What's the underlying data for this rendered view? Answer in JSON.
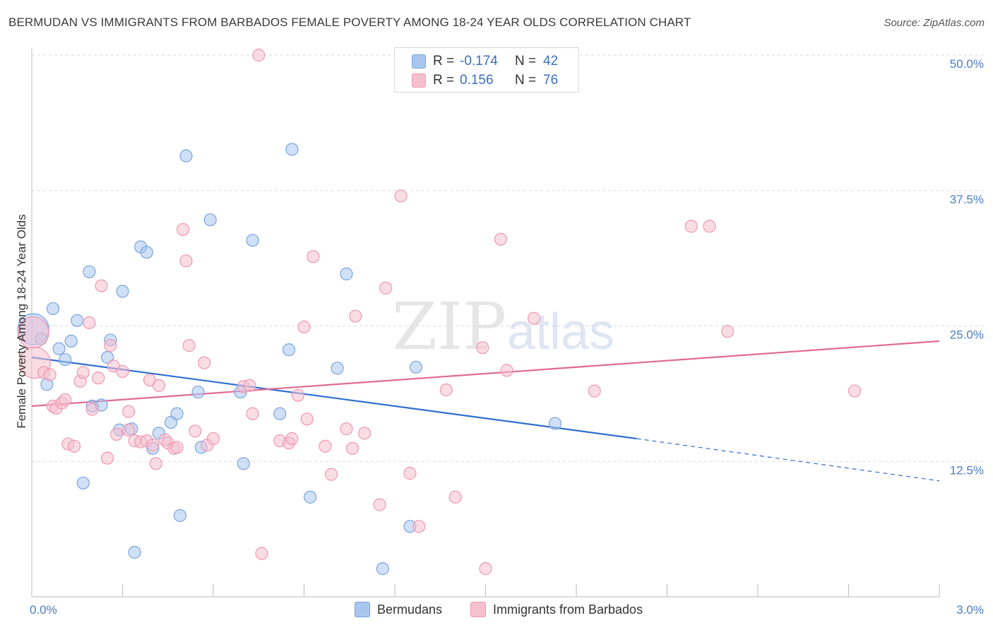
{
  "title": "BERMUDAN VS IMMIGRANTS FROM BARBADOS FEMALE POVERTY AMONG 18-24 YEAR OLDS CORRELATION CHART",
  "source": "Source: ZipAtlas.com",
  "watermark": {
    "zip": "ZIP",
    "atlas": "atlas"
  },
  "legend": {
    "rows": [
      {
        "r_label": "R =",
        "r_value": "-0.174",
        "n_label": "N =",
        "n_value": "42",
        "color": "#a9c6ef",
        "border": "#7aa4de"
      },
      {
        "r_label": "R =",
        "r_value": "0.156",
        "n_label": "N =",
        "n_value": "76",
        "color": "#f6bfd0",
        "border": "#ee98b3"
      }
    ]
  },
  "bottom_legend": [
    {
      "label": "Bermudans",
      "color": "#a9c6ef",
      "border": "#7aa4de"
    },
    {
      "label": "Immigrants from Barbados",
      "color": "#f6bfd0",
      "border": "#ee98b3"
    }
  ],
  "chart_data": {
    "type": "scatter",
    "title": "BERMUDAN VS IMMIGRANTS FROM BARBADOS FEMALE POVERTY AMONG 18-24 YEAR OLDS CORRELATION CHART",
    "ylabel": "Female Poverty Among 18-24 Year Olds",
    "xlabel": "",
    "xlim": [
      0,
      3.0
    ],
    "ylim": [
      0,
      50
    ],
    "x_tick_labels": [
      "0.0%",
      "3.0%"
    ],
    "y_ticks": [
      12.5,
      25.0,
      37.5,
      50.0
    ],
    "y_tick_labels": [
      "12.5%",
      "25.0%",
      "37.5%",
      "50.0%"
    ],
    "grid": "horizontal dashed",
    "series": [
      {
        "name": "Bermudans",
        "color": "#7aa4de",
        "fill": "#a9c6ef",
        "line_color": "#2f6fd0",
        "trend": {
          "x_start": 0.0,
          "y_start": 22.1,
          "x_end": 2.0,
          "y_end": 14.6,
          "x_dash_end": 3.0,
          "y_dash_end": 10.7
        },
        "points": [
          {
            "x": 0.005,
            "y": 24.7,
            "big": true
          },
          {
            "x": 0.03,
            "y": 23.8
          },
          {
            "x": 0.05,
            "y": 19.6
          },
          {
            "x": 0.07,
            "y": 26.6
          },
          {
            "x": 0.09,
            "y": 22.9
          },
          {
            "x": 0.11,
            "y": 21.9
          },
          {
            "x": 0.13,
            "y": 23.6
          },
          {
            "x": 0.15,
            "y": 25.5
          },
          {
            "x": 0.17,
            "y": 10.5
          },
          {
            "x": 0.19,
            "y": 30.0
          },
          {
            "x": 0.2,
            "y": 17.6
          },
          {
            "x": 0.23,
            "y": 17.7
          },
          {
            "x": 0.25,
            "y": 22.1
          },
          {
            "x": 0.26,
            "y": 23.7
          },
          {
            "x": 0.29,
            "y": 15.4
          },
          {
            "x": 0.3,
            "y": 28.2
          },
          {
            "x": 0.33,
            "y": 15.5
          },
          {
            "x": 0.34,
            "y": 4.1
          },
          {
            "x": 0.36,
            "y": 32.3
          },
          {
            "x": 0.38,
            "y": 31.8
          },
          {
            "x": 0.4,
            "y": 13.7
          },
          {
            "x": 0.42,
            "y": 15.1
          },
          {
            "x": 0.46,
            "y": 16.1
          },
          {
            "x": 0.48,
            "y": 16.9
          },
          {
            "x": 0.49,
            "y": 7.5
          },
          {
            "x": 0.51,
            "y": 40.7
          },
          {
            "x": 0.55,
            "y": 18.9
          },
          {
            "x": 0.56,
            "y": 13.8
          },
          {
            "x": 0.59,
            "y": 34.8
          },
          {
            "x": 0.69,
            "y": 18.9
          },
          {
            "x": 0.7,
            "y": 12.3
          },
          {
            "x": 0.73,
            "y": 32.9
          },
          {
            "x": 0.82,
            "y": 16.9
          },
          {
            "x": 0.85,
            "y": 22.8
          },
          {
            "x": 0.86,
            "y": 41.3
          },
          {
            "x": 0.92,
            "y": 9.2
          },
          {
            "x": 1.01,
            "y": 21.1
          },
          {
            "x": 1.04,
            "y": 29.8
          },
          {
            "x": 1.16,
            "y": 2.6
          },
          {
            "x": 1.25,
            "y": 6.5
          },
          {
            "x": 1.27,
            "y": 21.2
          },
          {
            "x": 1.73,
            "y": 16.0
          }
        ]
      },
      {
        "name": "Immigrants from Barbados",
        "color": "#ee98b3",
        "fill": "#f6bfd0",
        "line_color": "#e06a95",
        "trend": {
          "x_start": 0.0,
          "y_start": 17.6,
          "x_end": 3.0,
          "y_end": 23.6
        },
        "points": [
          {
            "x": 0.005,
            "y": 24.4,
            "big": true
          },
          {
            "x": 0.01,
            "y": 21.6,
            "big": true
          },
          {
            "x": 0.04,
            "y": 20.7
          },
          {
            "x": 0.06,
            "y": 20.5
          },
          {
            "x": 0.07,
            "y": 17.6
          },
          {
            "x": 0.08,
            "y": 17.4
          },
          {
            "x": 0.1,
            "y": 17.9
          },
          {
            "x": 0.11,
            "y": 18.2
          },
          {
            "x": 0.12,
            "y": 14.1
          },
          {
            "x": 0.14,
            "y": 13.9
          },
          {
            "x": 0.16,
            "y": 19.9
          },
          {
            "x": 0.17,
            "y": 20.7
          },
          {
            "x": 0.19,
            "y": 25.3
          },
          {
            "x": 0.2,
            "y": 17.3
          },
          {
            "x": 0.22,
            "y": 20.2
          },
          {
            "x": 0.23,
            "y": 28.7
          },
          {
            "x": 0.25,
            "y": 12.8
          },
          {
            "x": 0.26,
            "y": 23.2
          },
          {
            "x": 0.27,
            "y": 21.3
          },
          {
            "x": 0.28,
            "y": 15.0
          },
          {
            "x": 0.3,
            "y": 20.8
          },
          {
            "x": 0.32,
            "y": 17.1
          },
          {
            "x": 0.32,
            "y": 15.4
          },
          {
            "x": 0.34,
            "y": 14.4
          },
          {
            "x": 0.36,
            "y": 14.3
          },
          {
            "x": 0.38,
            "y": 14.4
          },
          {
            "x": 0.39,
            "y": 20.0
          },
          {
            "x": 0.4,
            "y": 14.0
          },
          {
            "x": 0.41,
            "y": 12.3
          },
          {
            "x": 0.42,
            "y": 19.5
          },
          {
            "x": 0.44,
            "y": 14.5
          },
          {
            "x": 0.45,
            "y": 14.2
          },
          {
            "x": 0.47,
            "y": 13.7
          },
          {
            "x": 0.48,
            "y": 13.8
          },
          {
            "x": 0.5,
            "y": 33.9
          },
          {
            "x": 0.51,
            "y": 31.0
          },
          {
            "x": 0.52,
            "y": 23.2
          },
          {
            "x": 0.54,
            "y": 15.3
          },
          {
            "x": 0.57,
            "y": 21.6
          },
          {
            "x": 0.58,
            "y": 14.0
          },
          {
            "x": 0.6,
            "y": 14.6
          },
          {
            "x": 0.7,
            "y": 19.4
          },
          {
            "x": 0.72,
            "y": 19.5
          },
          {
            "x": 0.73,
            "y": 16.9
          },
          {
            "x": 0.75,
            "y": 50.0
          },
          {
            "x": 0.76,
            "y": 4.0
          },
          {
            "x": 0.82,
            "y": 14.4
          },
          {
            "x": 0.85,
            "y": 14.2
          },
          {
            "x": 0.86,
            "y": 14.6
          },
          {
            "x": 0.88,
            "y": 18.6
          },
          {
            "x": 0.9,
            "y": 24.9
          },
          {
            "x": 0.91,
            "y": 16.4
          },
          {
            "x": 0.93,
            "y": 31.4
          },
          {
            "x": 0.97,
            "y": 13.9
          },
          {
            "x": 0.99,
            "y": 11.3
          },
          {
            "x": 1.04,
            "y": 15.5
          },
          {
            "x": 1.06,
            "y": 13.7
          },
          {
            "x": 1.07,
            "y": 25.9
          },
          {
            "x": 1.1,
            "y": 15.1
          },
          {
            "x": 1.15,
            "y": 8.5
          },
          {
            "x": 1.17,
            "y": 28.5
          },
          {
            "x": 1.22,
            "y": 37.0
          },
          {
            "x": 1.25,
            "y": 11.4
          },
          {
            "x": 1.28,
            "y": 6.5
          },
          {
            "x": 1.37,
            "y": 19.1
          },
          {
            "x": 1.4,
            "y": 9.2
          },
          {
            "x": 1.49,
            "y": 23.0
          },
          {
            "x": 1.5,
            "y": 2.6
          },
          {
            "x": 1.55,
            "y": 33.0
          },
          {
            "x": 1.57,
            "y": 20.9
          },
          {
            "x": 1.66,
            "y": 25.7
          },
          {
            "x": 1.86,
            "y": 19.0
          },
          {
            "x": 2.18,
            "y": 34.2
          },
          {
            "x": 2.24,
            "y": 34.2
          },
          {
            "x": 2.3,
            "y": 24.5
          },
          {
            "x": 2.72,
            "y": 19.0
          }
        ]
      }
    ]
  }
}
